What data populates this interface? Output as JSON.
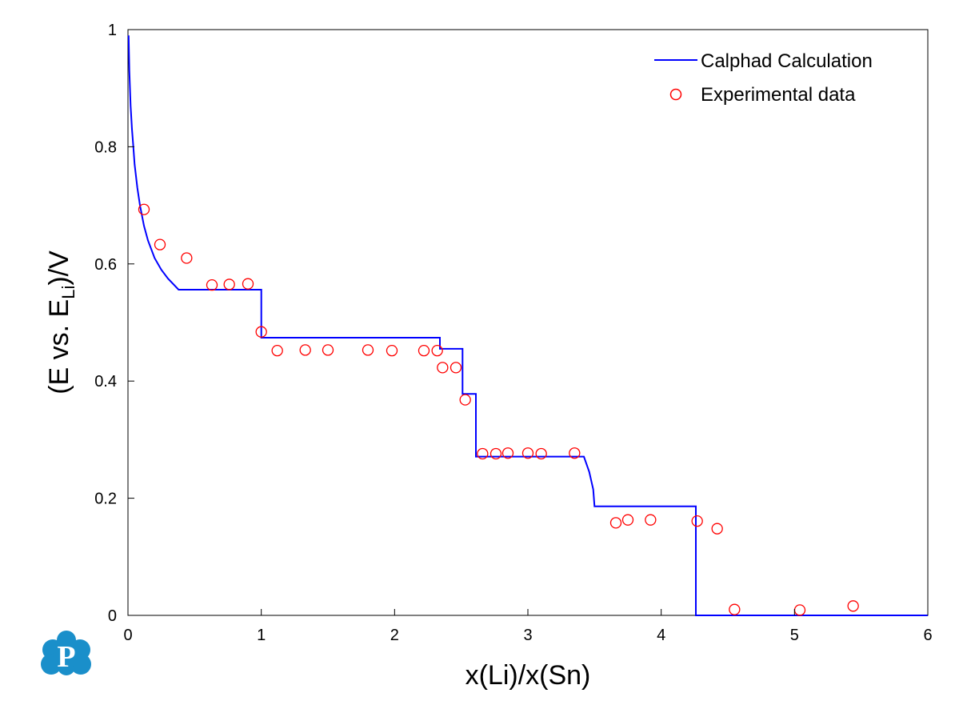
{
  "chart_data": {
    "type": "line",
    "xlabel": "x(Li)/x(Sn)",
    "ylabel": {
      "prefix": "(E vs. E",
      "subscript": "Li",
      "suffix": ")/V"
    },
    "xlim": [
      0,
      6
    ],
    "ylim": [
      0,
      1
    ],
    "xticks": [
      0,
      1,
      2,
      3,
      4,
      5,
      6
    ],
    "yticks": [
      0,
      0.2,
      0.4,
      0.6,
      0.8,
      1
    ],
    "xtick_labels": [
      "0",
      "1",
      "2",
      "3",
      "4",
      "5",
      "6"
    ],
    "ytick_labels": [
      "0",
      "0.2",
      "0.4",
      "0.6",
      "0.8",
      "1"
    ],
    "grid": false,
    "legend_position": "top-right",
    "series": [
      {
        "name": "Calphad Calculation",
        "kind": "line",
        "color": "#0000ff",
        "x": [
          0.005,
          0.01,
          0.02,
          0.03,
          0.04,
          0.05,
          0.07,
          0.09,
          0.12,
          0.15,
          0.2,
          0.25,
          0.3,
          0.38,
          1.0,
          1.0,
          2.34,
          2.34,
          2.51,
          2.51,
          2.61,
          2.61,
          3.42,
          3.46,
          3.49,
          3.5,
          3.5,
          4.26,
          4.26,
          6.0
        ],
        "y": [
          0.99,
          0.93,
          0.87,
          0.83,
          0.8,
          0.77,
          0.73,
          0.7,
          0.665,
          0.64,
          0.61,
          0.59,
          0.575,
          0.556,
          0.556,
          0.474,
          0.474,
          0.455,
          0.455,
          0.378,
          0.378,
          0.271,
          0.271,
          0.245,
          0.215,
          0.186,
          0.186,
          0.186,
          0.0,
          0.0
        ]
      },
      {
        "name": "Experimental data",
        "kind": "scatter",
        "color": "#ff0000",
        "x": [
          0.12,
          0.24,
          0.44,
          0.63,
          0.76,
          0.9,
          1.0,
          1.12,
          1.33,
          1.5,
          1.8,
          1.98,
          2.22,
          2.32,
          2.36,
          2.46,
          2.53,
          2.66,
          2.76,
          2.85,
          3.0,
          3.1,
          3.35,
          3.66,
          3.75,
          3.92,
          4.27,
          4.42,
          4.55,
          5.04,
          5.44
        ],
        "y": [
          0.693,
          0.633,
          0.61,
          0.564,
          0.565,
          0.566,
          0.484,
          0.452,
          0.453,
          0.453,
          0.453,
          0.452,
          0.452,
          0.452,
          0.423,
          0.423,
          0.368,
          0.276,
          0.276,
          0.277,
          0.277,
          0.276,
          0.277,
          0.158,
          0.163,
          0.163,
          0.161,
          0.148,
          0.01,
          0.009,
          0.016
        ]
      }
    ]
  },
  "logo": {
    "icon": "p-cloud-logo-icon",
    "letter": "P",
    "color": "#1a8fca"
  }
}
